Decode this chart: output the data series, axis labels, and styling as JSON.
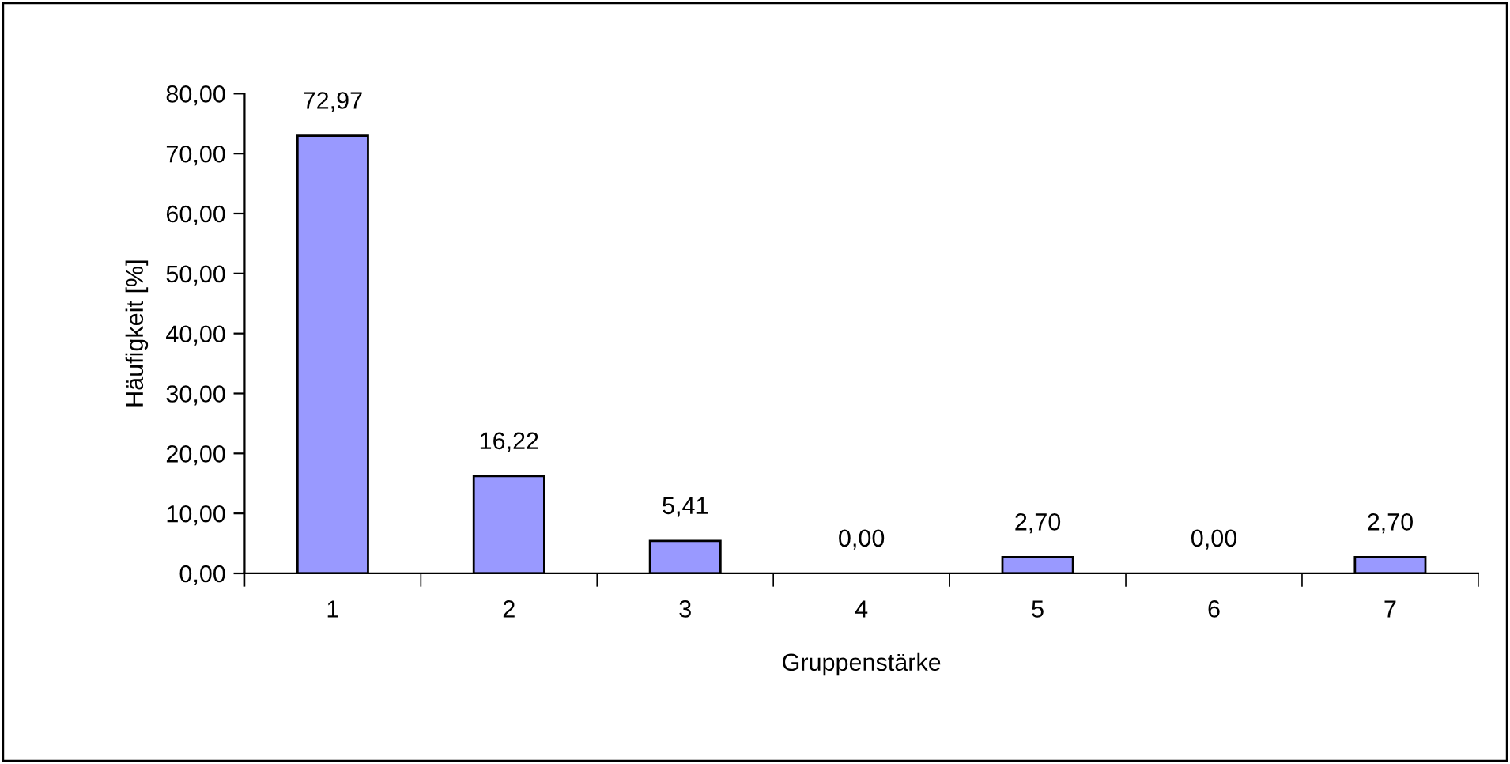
{
  "chart_data": {
    "type": "bar",
    "xlabel": "Gruppenstärke",
    "ylabel": "Häufigkeit [%]",
    "categories": [
      "1",
      "2",
      "3",
      "4",
      "5",
      "6",
      "7"
    ],
    "values": [
      72.97,
      16.22,
      5.41,
      0.0,
      2.7,
      0.0,
      2.7
    ],
    "value_labels": [
      "72,97",
      "16,22",
      "5,41",
      "0,00",
      "2,70",
      "0,00",
      "2,70"
    ],
    "color": "#9999ff",
    "ylim": [
      0,
      80
    ],
    "yticks": [
      {
        "value": 0,
        "label": "0,00"
      },
      {
        "value": 10,
        "label": "10,00"
      },
      {
        "value": 20,
        "label": "20,00"
      },
      {
        "value": 30,
        "label": "30,00"
      },
      {
        "value": 40,
        "label": "40,00"
      },
      {
        "value": 50,
        "label": "50,00"
      },
      {
        "value": 60,
        "label": "60,00"
      },
      {
        "value": 70,
        "label": "70,00"
      },
      {
        "value": 80,
        "label": "80,00"
      }
    ],
    "grid": false,
    "legend": false
  }
}
